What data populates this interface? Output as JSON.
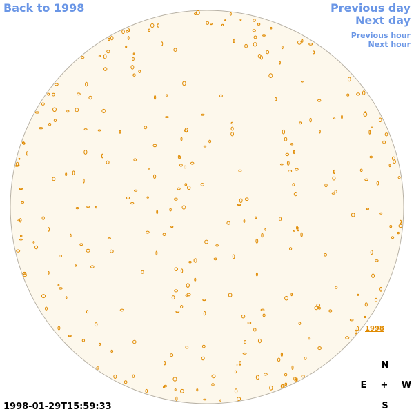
{
  "links": {
    "back": "Back to 1998",
    "previous_day": "Previous day",
    "next_day": "Next day",
    "previous_hour": "Previous hour",
    "next_hour": "Next hour",
    "year": "1998"
  },
  "timestamp": "1998-01-29T15:59:33",
  "compass": {
    "north": "N",
    "east": "E",
    "center": "+",
    "west": "W",
    "south": "S"
  }
}
